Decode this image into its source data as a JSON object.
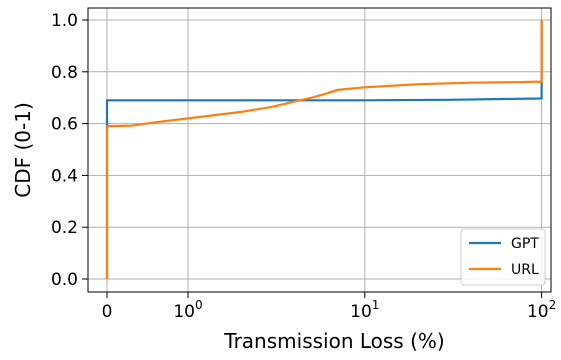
{
  "chart_data": {
    "type": "line",
    "subtype": "cdf",
    "xlabel": "Transmission Loss (%)",
    "ylabel": "CDF (0-1)",
    "x_scale": "symlog",
    "xlim": [
      0,
      100
    ],
    "ylim": [
      0,
      1
    ],
    "x_ticks": [
      {
        "value": 0,
        "base": "0",
        "exp": ""
      },
      {
        "value": 1,
        "base": "10",
        "exp": "0"
      },
      {
        "value": 10,
        "base": "10",
        "exp": "1"
      },
      {
        "value": 100,
        "base": "10",
        "exp": "2"
      }
    ],
    "y_ticks": [
      {
        "value": 0.0,
        "label": "0.0"
      },
      {
        "value": 0.2,
        "label": "0.2"
      },
      {
        "value": 0.4,
        "label": "0.4"
      },
      {
        "value": 0.6,
        "label": "0.6"
      },
      {
        "value": 0.8,
        "label": "0.8"
      },
      {
        "value": 1.0,
        "label": "1.0"
      }
    ],
    "grid": true,
    "legend_position": "bottom-right",
    "series": [
      {
        "name": "GPT",
        "color": "#1f77b4",
        "points": [
          [
            0,
            0
          ],
          [
            0,
            0.69
          ],
          [
            1,
            0.69
          ],
          [
            10,
            0.69
          ],
          [
            30,
            0.692
          ],
          [
            60,
            0.695
          ],
          [
            100,
            0.697
          ],
          [
            100,
            1.0
          ]
        ]
      },
      {
        "name": "URL",
        "color": "#ff7f0e",
        "points": [
          [
            0,
            0
          ],
          [
            0,
            0.59
          ],
          [
            0.3,
            0.592
          ],
          [
            0.6,
            0.605
          ],
          [
            1,
            0.62
          ],
          [
            2,
            0.645
          ],
          [
            3,
            0.665
          ],
          [
            4,
            0.685
          ],
          [
            5,
            0.7
          ],
          [
            6,
            0.715
          ],
          [
            7,
            0.73
          ],
          [
            10,
            0.74
          ],
          [
            20,
            0.752
          ],
          [
            40,
            0.758
          ],
          [
            70,
            0.76
          ],
          [
            100,
            0.762
          ],
          [
            100,
            1.0
          ]
        ]
      }
    ]
  }
}
